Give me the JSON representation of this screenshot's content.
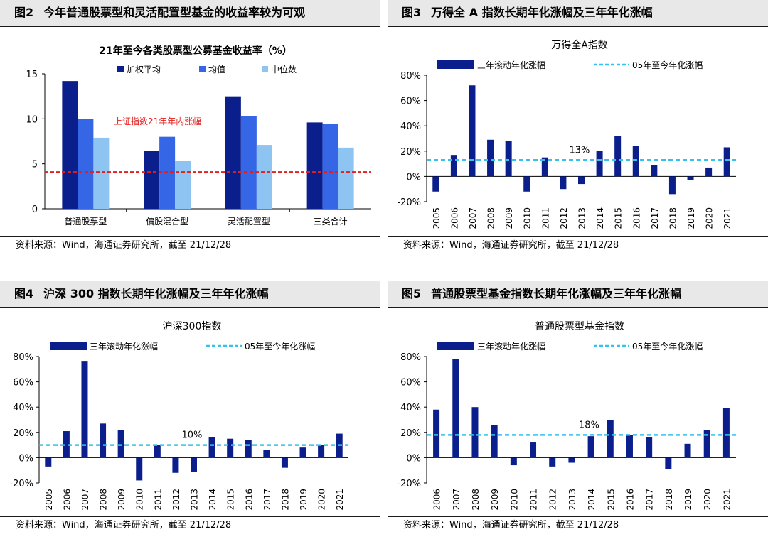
{
  "colors": {
    "dark_navy": "#0b1f8c",
    "blue": "#3566e6",
    "light_blue": "#8ec4f2",
    "dashed_red": "#e0201e",
    "dashed_cyan": "#35c1ec",
    "title_bg": "#e8e8e8"
  },
  "panels": [
    {
      "fig": "图2",
      "title": "今年普通股票型和灵活配置型基金的收益率较为可观",
      "source": "资料来源：Wind，海通证券研究所，截至 21/12/28"
    },
    {
      "fig": "图3",
      "title": "万得全 A 指数长期年化涨幅及三年年化涨幅",
      "source": "资料来源：Wind，海通证券研究所，截至 21/12/28"
    },
    {
      "fig": "图4",
      "title": "沪深 300 指数长期年化涨幅及三年年化涨幅",
      "source": "资料来源：Wind，海通证券研究所，截至 21/12/28"
    },
    {
      "fig": "图5",
      "title": "普通股票型基金指数长期年化涨幅及三年年化涨幅",
      "source": "资料来源：Wind，海通证券研究所，截至 21/12/28"
    }
  ],
  "chart_data": [
    {
      "type": "bar",
      "title": "21年至今各类股票型公募基金收益率（%）",
      "categories": [
        "普通股票型",
        "偏股混合型",
        "灵活配置型",
        "三类合计"
      ],
      "series": [
        {
          "name": "加权平均",
          "values": [
            14.2,
            6.4,
            12.5,
            9.6
          ]
        },
        {
          "name": "均值",
          "values": [
            10.0,
            8.0,
            10.3,
            9.4
          ]
        },
        {
          "name": "中位数",
          "values": [
            7.9,
            5.3,
            7.1,
            6.8
          ]
        }
      ],
      "reference_line": {
        "value": 4.1,
        "label": "上证指数21年年内涨幅"
      },
      "ylim": [
        0,
        15
      ],
      "yticks": [
        "0",
        "5",
        "10",
        "15"
      ],
      "legend": "top",
      "grid": false
    },
    {
      "type": "bar",
      "title": "万得全A指数",
      "x": [
        "2005",
        "2006",
        "2007",
        "2008",
        "2009",
        "2010",
        "2011",
        "2012",
        "2013",
        "2014",
        "2015",
        "2016",
        "2017",
        "2018",
        "2019",
        "2020",
        "2021"
      ],
      "series": [
        {
          "name": "三年滚动年化涨幅",
          "values": [
            -12,
            17,
            72,
            29,
            28,
            -12,
            15,
            -10,
            -6,
            20,
            32,
            24,
            9,
            -14,
            -3,
            7,
            23
          ]
        }
      ],
      "reference_line": {
        "name": "05年至今年化涨幅",
        "value": 13,
        "label": "13%"
      },
      "ylim": [
        -20,
        80
      ],
      "yticks": [
        "-20%",
        "0%",
        "20%",
        "40%",
        "60%",
        "80%"
      ],
      "legend": "top",
      "grid": false
    },
    {
      "type": "bar",
      "title": "沪深300指数",
      "x": [
        "2005",
        "2006",
        "2007",
        "2008",
        "2009",
        "2010",
        "2011",
        "2012",
        "2013",
        "2014",
        "2015",
        "2016",
        "2017",
        "2018",
        "2019",
        "2020",
        "2021"
      ],
      "series": [
        {
          "name": "三年滚动年化涨幅",
          "values": [
            -7,
            21,
            76,
            27,
            22,
            -18,
            10,
            -12,
            -11,
            16,
            15,
            14,
            6,
            -8,
            8,
            10,
            19
          ]
        }
      ],
      "reference_line": {
        "name": "05年至今年化涨幅",
        "value": 10,
        "label": "10%"
      },
      "ylim": [
        -20,
        80
      ],
      "yticks": [
        "-20%",
        "0%",
        "20%",
        "40%",
        "60%",
        "80%"
      ],
      "legend": "top",
      "grid": false
    },
    {
      "type": "bar",
      "title": "普通股票型基金指数",
      "x": [
        "2006",
        "2007",
        "2008",
        "2009",
        "2010",
        "2011",
        "2012",
        "2013",
        "2014",
        "2015",
        "2016",
        "2017",
        "2018",
        "2019",
        "2020",
        "2021"
      ],
      "series": [
        {
          "name": "三年滚动年化涨幅",
          "values": [
            38,
            78,
            40,
            26,
            -6,
            12,
            -7,
            -4,
            17,
            30,
            18,
            16,
            -9,
            11,
            22,
            39
          ]
        }
      ],
      "reference_line": {
        "name": "05年至今年化涨幅",
        "value": 18,
        "label": "18%"
      },
      "ylim": [
        -20,
        80
      ],
      "yticks": [
        "-20%",
        "0%",
        "20%",
        "40%",
        "60%",
        "80%"
      ],
      "legend": "top",
      "grid": false
    }
  ]
}
